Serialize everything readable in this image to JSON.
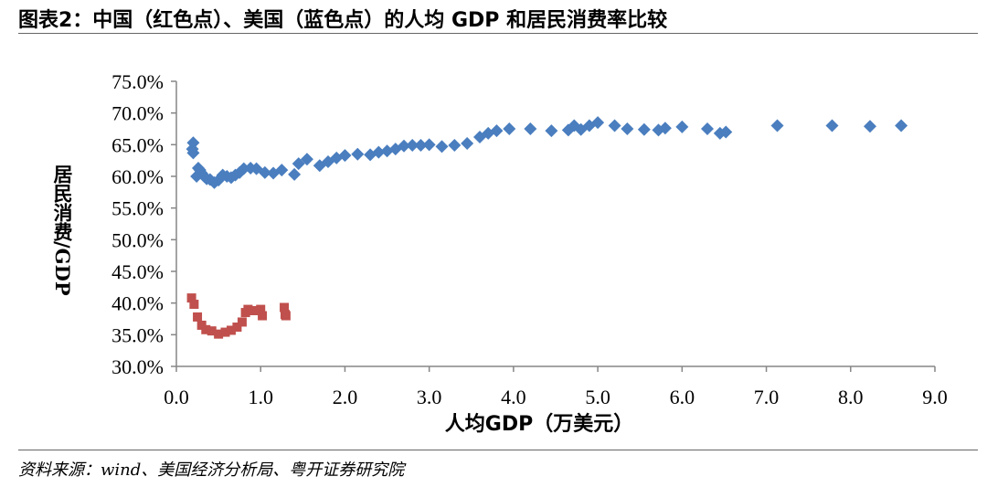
{
  "figure": {
    "title": "图表2：中国（红色点）、美国（蓝色点）的人均 GDP 和居民消费率比较",
    "source": "资料来源：wind、美国经济分析局、粤开证券研究院"
  },
  "chart_data": {
    "type": "scatter",
    "title": "",
    "xlabel": "人均GDP（万美元）",
    "ylabel": "居民消费/GDP",
    "xlim": [
      0,
      9
    ],
    "ylim": [
      30,
      75
    ],
    "x_ticks": [
      "0.0",
      "1.0",
      "2.0",
      "3.0",
      "4.0",
      "5.0",
      "6.0",
      "7.0",
      "8.0",
      "9.0"
    ],
    "y_ticks": [
      "30.0%",
      "35.0%",
      "40.0%",
      "45.0%",
      "50.0%",
      "55.0%",
      "60.0%",
      "65.0%",
      "70.0%",
      "75.0%"
    ],
    "grid": false,
    "legend": "none",
    "series": [
      {
        "color": "#4a7ebf",
        "marker": "diamond",
        "points": [
          [
            0.2,
            65.3
          ],
          [
            0.19,
            64.3
          ],
          [
            0.2,
            63.7
          ],
          [
            0.24,
            60.0
          ],
          [
            0.26,
            61.3
          ],
          [
            0.28,
            61.0
          ],
          [
            0.3,
            60.5
          ],
          [
            0.33,
            60.0
          ],
          [
            0.36,
            59.6
          ],
          [
            0.4,
            59.5
          ],
          [
            0.45,
            59.0
          ],
          [
            0.5,
            59.4
          ],
          [
            0.55,
            60.2
          ],
          [
            0.6,
            60.0
          ],
          [
            0.65,
            59.8
          ],
          [
            0.7,
            60.2
          ],
          [
            0.75,
            60.6
          ],
          [
            0.8,
            61.2
          ],
          [
            0.88,
            61.3
          ],
          [
            0.95,
            61.2
          ],
          [
            1.05,
            60.6
          ],
          [
            1.15,
            60.5
          ],
          [
            1.25,
            61.0
          ],
          [
            1.4,
            60.3
          ],
          [
            1.45,
            62.0
          ],
          [
            1.55,
            62.7
          ],
          [
            1.7,
            61.7
          ],
          [
            1.8,
            62.3
          ],
          [
            1.9,
            62.9
          ],
          [
            2.0,
            63.3
          ],
          [
            2.15,
            63.5
          ],
          [
            2.3,
            63.4
          ],
          [
            2.4,
            63.8
          ],
          [
            2.5,
            64.0
          ],
          [
            2.6,
            64.3
          ],
          [
            2.7,
            64.8
          ],
          [
            2.8,
            64.9
          ],
          [
            2.9,
            64.9
          ],
          [
            3.0,
            65.0
          ],
          [
            3.15,
            64.7
          ],
          [
            3.3,
            64.9
          ],
          [
            3.45,
            65.2
          ],
          [
            3.6,
            66.2
          ],
          [
            3.7,
            66.8
          ],
          [
            3.8,
            67.2
          ],
          [
            3.95,
            67.5
          ],
          [
            4.2,
            67.5
          ],
          [
            4.45,
            67.2
          ],
          [
            4.65,
            67.3
          ],
          [
            4.72,
            68.0
          ],
          [
            4.8,
            67.4
          ],
          [
            4.9,
            68.0
          ],
          [
            5.0,
            68.5
          ],
          [
            5.2,
            68.0
          ],
          [
            5.35,
            67.5
          ],
          [
            5.55,
            67.4
          ],
          [
            5.72,
            67.3
          ],
          [
            5.8,
            67.6
          ],
          [
            6.0,
            67.8
          ],
          [
            6.3,
            67.5
          ],
          [
            6.45,
            66.8
          ],
          [
            6.52,
            67.0
          ],
          [
            7.13,
            68.0
          ],
          [
            7.78,
            68.0
          ],
          [
            8.23,
            67.9
          ],
          [
            8.6,
            68.0
          ]
        ]
      },
      {
        "color": "#c0504d",
        "marker": "square",
        "points": [
          [
            0.18,
            40.8
          ],
          [
            0.21,
            39.8
          ],
          [
            0.25,
            37.8
          ],
          [
            0.3,
            36.5
          ],
          [
            0.35,
            35.8
          ],
          [
            0.42,
            35.6
          ],
          [
            0.5,
            35.1
          ],
          [
            0.58,
            35.4
          ],
          [
            0.65,
            35.7
          ],
          [
            0.72,
            36.2
          ],
          [
            0.78,
            37.0
          ],
          [
            0.82,
            38.5
          ],
          [
            0.85,
            39.0
          ],
          [
            0.92,
            38.8
          ],
          [
            1.0,
            39.0
          ],
          [
            1.02,
            38.0
          ],
          [
            1.28,
            39.3
          ],
          [
            1.29,
            38.2
          ],
          [
            1.3,
            38.0
          ]
        ]
      }
    ]
  }
}
